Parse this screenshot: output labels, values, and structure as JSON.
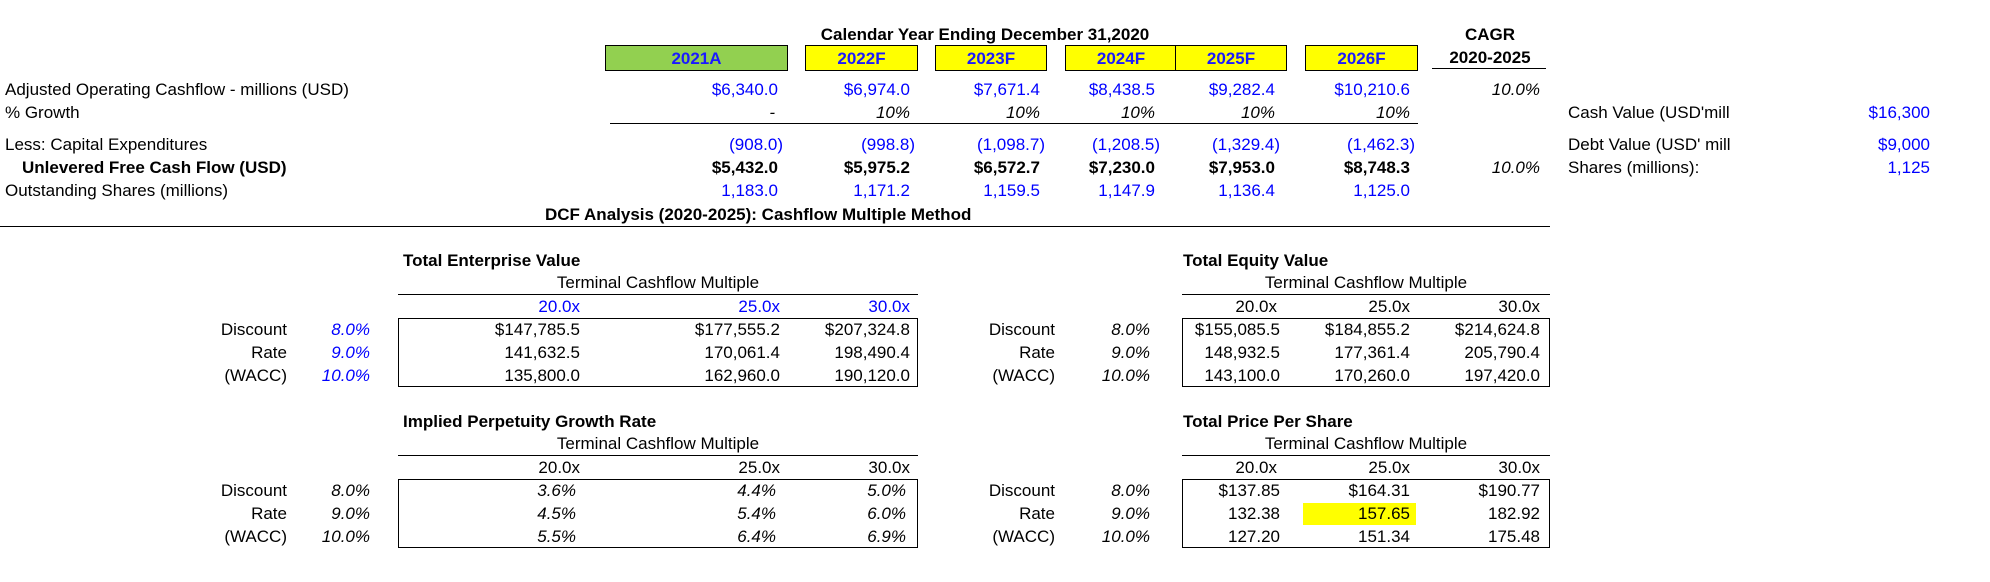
{
  "header": {
    "title": "Calendar Year Ending December 31,2020",
    "cagr_title": "CAGR",
    "cagr_period": "2020-2025",
    "years": [
      "2021A",
      "2022F",
      "2023F",
      "2024F",
      "2025F",
      "2026F"
    ],
    "colors": {
      "actual": "#92d050",
      "forecast": "#ffff00",
      "text": "#1a1aff"
    }
  },
  "rows": {
    "ocf": {
      "label": "Adjusted Operating Cashflow - millions (USD)",
      "values": [
        "$6,340.0",
        "$6,974.0",
        "$7,671.4",
        "$8,438.5",
        "$9,282.4",
        "$10,210.6"
      ],
      "cagr": "10.0%"
    },
    "growth": {
      "label": "% Growth",
      "values": [
        "-",
        "10%",
        "10%",
        "10%",
        "10%",
        "10%"
      ]
    },
    "capex": {
      "label": "Less: Capital Expenditures",
      "values": [
        "(908.0)",
        "(998.8)",
        "(1,098.7)",
        "(1,208.5)",
        "(1,329.4)",
        "(1,462.3)"
      ]
    },
    "ufcf": {
      "label": "Unlevered Free Cash Flow (USD)",
      "values": [
        "$5,432.0",
        "$5,975.2",
        "$6,572.7",
        "$7,230.0",
        "$7,953.0",
        "$8,748.3"
      ],
      "cagr": "10.0%"
    },
    "shares": {
      "label": "Outstanding Shares (millions)",
      "values": [
        "1,183.0",
        "1,171.2",
        "1,159.5",
        "1,147.9",
        "1,136.4",
        "1,125.0"
      ]
    }
  },
  "side": {
    "cash_label": "Cash Value (USD'mill",
    "cash_value": "$16,300",
    "debt_label": "Debt Value (USD' mill",
    "debt_value": "$9,000",
    "shares_label": "Shares (millions):",
    "shares_value": "1,125"
  },
  "dcf_title": "DCF Analysis (2020-2025):  Cashflow Multiple Method",
  "row_labels": [
    "Discount",
    "Rate",
    "(WACC)"
  ],
  "rates": [
    "8.0%",
    "9.0%",
    "10.0%"
  ],
  "multiple_header": "Terminal Cashflow Multiple",
  "multiples": [
    "20.0x",
    "25.0x",
    "30.0x"
  ],
  "tables": {
    "ev": {
      "title": "Total Enterprise Value",
      "cells": [
        [
          "$147,785.5",
          "$177,555.2",
          "$207,324.8"
        ],
        [
          "141,632.5",
          "170,061.4",
          "198,490.4"
        ],
        [
          "135,800.0",
          "162,960.0",
          "190,120.0"
        ]
      ]
    },
    "eq": {
      "title": "Total Equity Value",
      "cells": [
        [
          "$155,085.5",
          "$184,855.2",
          "$214,624.8"
        ],
        [
          "148,932.5",
          "177,361.4",
          "205,790.4"
        ],
        [
          "143,100.0",
          "170,260.0",
          "197,420.0"
        ]
      ]
    },
    "pg": {
      "title": "Implied Perpetuity Growth Rate",
      "cells": [
        [
          "3.6%",
          "4.4%",
          "5.0%"
        ],
        [
          "4.5%",
          "5.4%",
          "6.0%"
        ],
        [
          "5.5%",
          "6.4%",
          "6.9%"
        ]
      ]
    },
    "ps": {
      "title": "Total Price Per Share",
      "cells": [
        [
          "$137.85",
          "$164.31",
          "$190.77"
        ],
        [
          "132.38",
          "157.65",
          "182.92"
        ],
        [
          "127.20",
          "151.34",
          "175.48"
        ]
      ],
      "highlight_color": "#ffff00"
    }
  }
}
